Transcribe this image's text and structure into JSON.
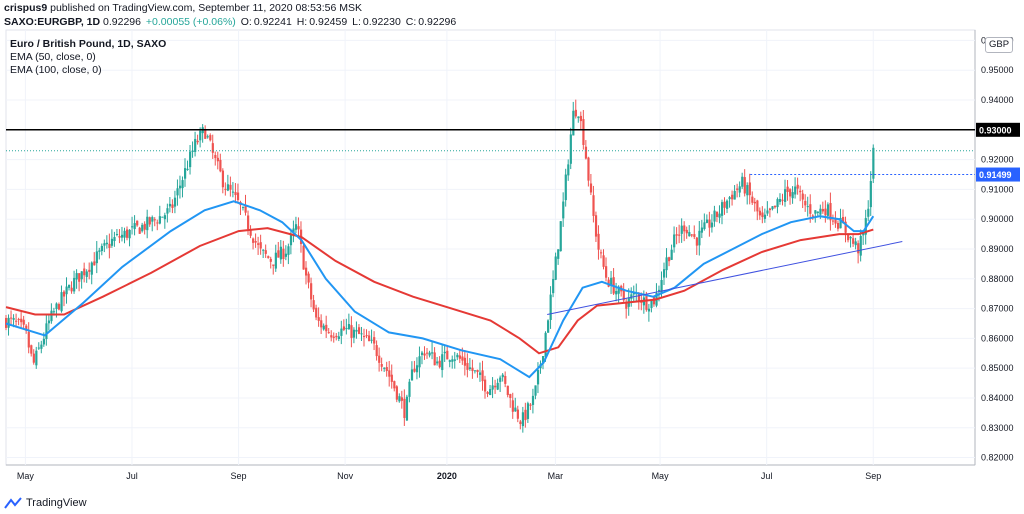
{
  "header": {
    "author": "crispus9",
    "published": "published on TradingView.com, September 11, 2020 08:53:56 MSK",
    "symbol_line": "SAXO:EURGBP, 1D",
    "last": "0.92296",
    "change": "+0.00055 (+0.06%)",
    "open_label": "O:",
    "open": "0.92241",
    "high_label": "H:",
    "high": "0.92459",
    "low_label": "L:",
    "low": "0.92230",
    "close_label": "C:",
    "close": "0.92296"
  },
  "legend": {
    "title": "Euro / British Pound, 1D, SAXO",
    "ema50": "EMA (50, close, 0)",
    "ema100": "EMA (100, close, 0)"
  },
  "currency_badge": "GBP",
  "footer": {
    "brand": "TradingView"
  },
  "colors": {
    "up": "#26a69a",
    "down": "#ef5350",
    "ema50": "#2196f3",
    "ema100": "#e53935",
    "trendline": "#3f51e0",
    "resistance": "#000000",
    "level_dotted": "#2962ff",
    "last_dotted": "#26a69a",
    "grid": "#f0f3fa"
  },
  "chart_data": {
    "type": "candlestick",
    "symbol": "EURGBP",
    "timeframe": "1D",
    "x_ticks": [
      "May",
      "Jul",
      "Sep",
      "Nov",
      "2020",
      "Mar",
      "May",
      "Jul",
      "Sep"
    ],
    "y_ticks": [
      "0.82000",
      "0.83000",
      "0.84000",
      "0.85000",
      "0.86000",
      "0.87000",
      "0.88000",
      "0.89000",
      "0.90000",
      "0.91000",
      "0.92000",
      "0.93000",
      "0.94000",
      "0.95000",
      "0.96000"
    ],
    "ylim": [
      0.8175,
      0.9635
    ],
    "horizontal_lines": [
      {
        "value": 0.93,
        "label": "0.93000",
        "style": "solid"
      },
      {
        "value": 0.91499,
        "label": "0.91499",
        "style": "dotted"
      },
      {
        "value": 0.92296,
        "label": "",
        "style": "dotted-last"
      }
    ],
    "trendline": {
      "start": {
        "x": 0.5585,
        "y": 0.868
      },
      "end": {
        "x": 0.925,
        "y": 0.8925
      }
    },
    "close_path": [
      [
        0.0,
        0.866
      ],
      [
        0.01,
        0.865
      ],
      [
        0.02,
        0.862
      ],
      [
        0.028,
        0.851
      ],
      [
        0.036,
        0.858
      ],
      [
        0.045,
        0.866
      ],
      [
        0.055,
        0.872
      ],
      [
        0.07,
        0.879
      ],
      [
        0.09,
        0.886
      ],
      [
        0.11,
        0.893
      ],
      [
        0.13,
        0.896
      ],
      [
        0.15,
        0.899
      ],
      [
        0.17,
        0.903
      ],
      [
        0.18,
        0.912
      ],
      [
        0.195,
        0.925
      ],
      [
        0.205,
        0.93
      ],
      [
        0.215,
        0.92
      ],
      [
        0.225,
        0.912
      ],
      [
        0.24,
        0.905
      ],
      [
        0.25,
        0.898
      ],
      [
        0.262,
        0.889
      ],
      [
        0.275,
        0.886
      ],
      [
        0.29,
        0.89
      ],
      [
        0.3,
        0.898
      ],
      [
        0.31,
        0.88
      ],
      [
        0.32,
        0.866
      ],
      [
        0.335,
        0.862
      ],
      [
        0.35,
        0.863
      ],
      [
        0.365,
        0.861
      ],
      [
        0.38,
        0.857
      ],
      [
        0.392,
        0.85
      ],
      [
        0.403,
        0.842
      ],
      [
        0.412,
        0.835
      ],
      [
        0.42,
        0.85
      ],
      [
        0.432,
        0.856
      ],
      [
        0.445,
        0.852
      ],
      [
        0.46,
        0.855
      ],
      [
        0.472,
        0.852
      ],
      [
        0.485,
        0.848
      ],
      [
        0.498,
        0.843
      ],
      [
        0.51,
        0.848
      ],
      [
        0.522,
        0.838
      ],
      [
        0.532,
        0.832
      ],
      [
        0.545,
        0.84
      ],
      [
        0.555,
        0.858
      ],
      [
        0.565,
        0.88
      ],
      [
        0.575,
        0.905
      ],
      [
        0.585,
        0.935
      ],
      [
        0.59,
        0.938
      ],
      [
        0.597,
        0.925
      ],
      [
        0.605,
        0.903
      ],
      [
        0.612,
        0.889
      ],
      [
        0.62,
        0.88
      ],
      [
        0.63,
        0.876
      ],
      [
        0.64,
        0.872
      ],
      [
        0.65,
        0.875
      ],
      [
        0.66,
        0.872
      ],
      [
        0.67,
        0.873
      ],
      [
        0.68,
        0.885
      ],
      [
        0.69,
        0.893
      ],
      [
        0.7,
        0.898
      ],
      [
        0.712,
        0.893
      ],
      [
        0.722,
        0.897
      ],
      [
        0.735,
        0.902
      ],
      [
        0.748,
        0.908
      ],
      [
        0.76,
        0.912
      ],
      [
        0.77,
        0.906
      ],
      [
        0.78,
        0.899
      ],
      [
        0.792,
        0.903
      ],
      [
        0.805,
        0.909
      ],
      [
        0.815,
        0.91
      ],
      [
        0.823,
        0.905
      ],
      [
        0.835,
        0.902
      ],
      [
        0.845,
        0.904
      ],
      [
        0.856,
        0.9
      ],
      [
        0.865,
        0.897
      ],
      [
        0.874,
        0.892
      ],
      [
        0.88,
        0.89
      ],
      [
        0.886,
        0.896
      ],
      [
        0.89,
        0.906
      ],
      [
        0.895,
        0.922
      ]
    ],
    "ema50_path": [
      [
        0.0,
        0.865
      ],
      [
        0.04,
        0.861
      ],
      [
        0.08,
        0.872
      ],
      [
        0.12,
        0.884
      ],
      [
        0.17,
        0.896
      ],
      [
        0.205,
        0.903
      ],
      [
        0.235,
        0.906
      ],
      [
        0.262,
        0.903
      ],
      [
        0.285,
        0.899
      ],
      [
        0.305,
        0.893
      ],
      [
        0.33,
        0.88
      ],
      [
        0.36,
        0.869
      ],
      [
        0.395,
        0.862
      ],
      [
        0.43,
        0.86
      ],
      [
        0.47,
        0.856
      ],
      [
        0.51,
        0.853
      ],
      [
        0.54,
        0.847
      ],
      [
        0.555,
        0.852
      ],
      [
        0.575,
        0.866
      ],
      [
        0.595,
        0.877
      ],
      [
        0.615,
        0.879
      ],
      [
        0.64,
        0.876
      ],
      [
        0.668,
        0.874
      ],
      [
        0.69,
        0.877
      ],
      [
        0.72,
        0.885
      ],
      [
        0.75,
        0.89
      ],
      [
        0.78,
        0.895
      ],
      [
        0.81,
        0.899
      ],
      [
        0.84,
        0.901
      ],
      [
        0.86,
        0.9
      ],
      [
        0.875,
        0.896
      ],
      [
        0.885,
        0.896
      ],
      [
        0.895,
        0.901
      ]
    ],
    "ema100_path": [
      [
        0.0,
        0.8705
      ],
      [
        0.03,
        0.868
      ],
      [
        0.06,
        0.868
      ],
      [
        0.1,
        0.874
      ],
      [
        0.15,
        0.882
      ],
      [
        0.2,
        0.891
      ],
      [
        0.24,
        0.896
      ],
      [
        0.27,
        0.897
      ],
      [
        0.305,
        0.894
      ],
      [
        0.34,
        0.886
      ],
      [
        0.38,
        0.879
      ],
      [
        0.42,
        0.874
      ],
      [
        0.46,
        0.87
      ],
      [
        0.5,
        0.866
      ],
      [
        0.53,
        0.86
      ],
      [
        0.55,
        0.855
      ],
      [
        0.57,
        0.857
      ],
      [
        0.59,
        0.866
      ],
      [
        0.61,
        0.871
      ],
      [
        0.64,
        0.872
      ],
      [
        0.67,
        0.873
      ],
      [
        0.7,
        0.876
      ],
      [
        0.74,
        0.883
      ],
      [
        0.78,
        0.889
      ],
      [
        0.82,
        0.893
      ],
      [
        0.86,
        0.895
      ],
      [
        0.88,
        0.895
      ],
      [
        0.895,
        0.8965
      ]
    ]
  }
}
